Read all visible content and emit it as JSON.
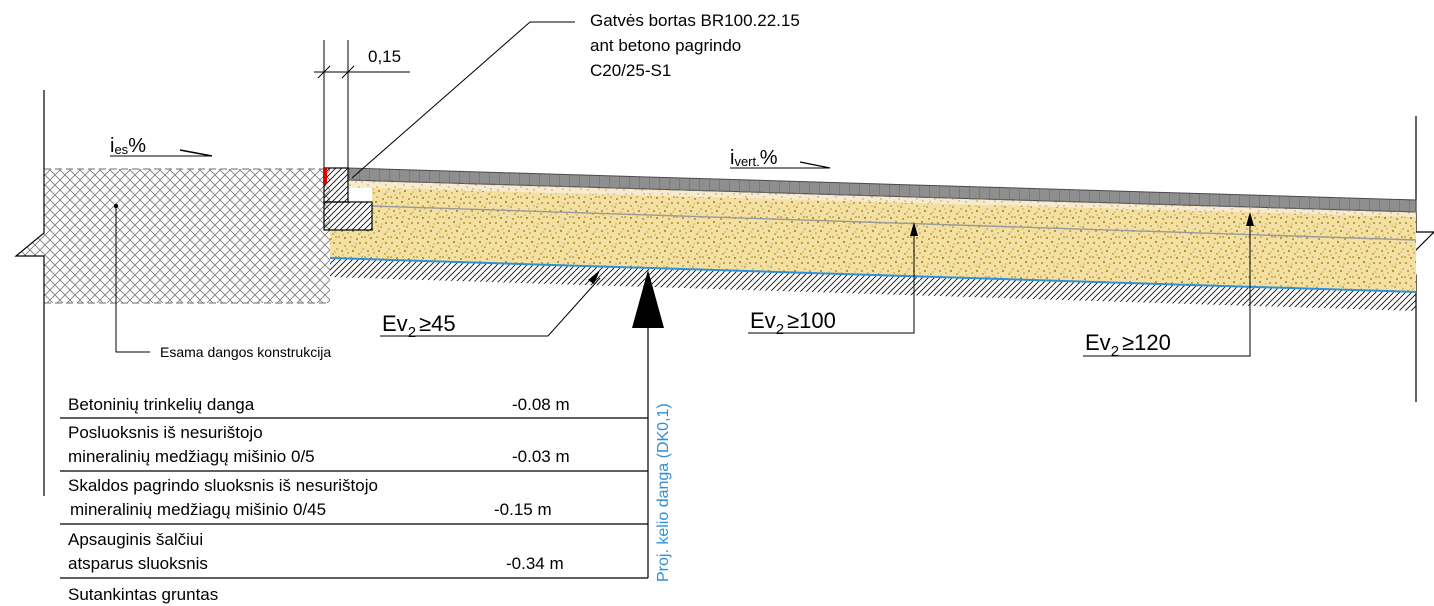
{
  "curb_callout": {
    "line1": "Gatvės bortas BR100.22.15",
    "line2": "ant betono pagrindo",
    "line3": "C20/25-S1"
  },
  "curb_width": "0,15",
  "slopes": {
    "existing_i": "i",
    "existing_sub": "es",
    "existing_pct": "%",
    "design_i": "i",
    "design_sub": "vert.",
    "design_pct": "%"
  },
  "existing_label": "Esama dangos konstrukcija",
  "bearing": [
    {
      "prefix": "Ev",
      "sub": "2",
      "value": "≥45"
    },
    {
      "prefix": "Ev",
      "sub": "2",
      "value": "≥100"
    },
    {
      "prefix": "Ev",
      "sub": "2",
      "value": "≥120"
    }
  ],
  "pavement_label": "Proj. kelio danga (DK0,1)",
  "layers": [
    {
      "line1": "Betoninių trinkelių danga",
      "line2": "",
      "thickness": "-0.08 m"
    },
    {
      "line1": "Posluoksnis iš nesurištojo",
      "line2": "mineralinių medžiagų mišinio 0/5",
      "thickness": "-0.03 m"
    },
    {
      "line1": "Skaldos pagrindo sluoksnis iš nesurištojo",
      "line2": "mineralinių medžiagų mišinio 0/45",
      "thickness": "-0.15 m"
    },
    {
      "line1": "Apsauginis šalčiui",
      "line2": "atsparus sluoksnis",
      "thickness": "-0.34 m"
    }
  ],
  "subgrade_label": "Sutankintas gruntas",
  "colors": {
    "pavers": "#8f8f8f",
    "aggregate": "#f3e0a4",
    "aggregate_dots": "#b58a1a",
    "subgrade_line": "#2f8fd8",
    "blue_text": "#2f8fd8",
    "curb_red": "#e00000"
  }
}
